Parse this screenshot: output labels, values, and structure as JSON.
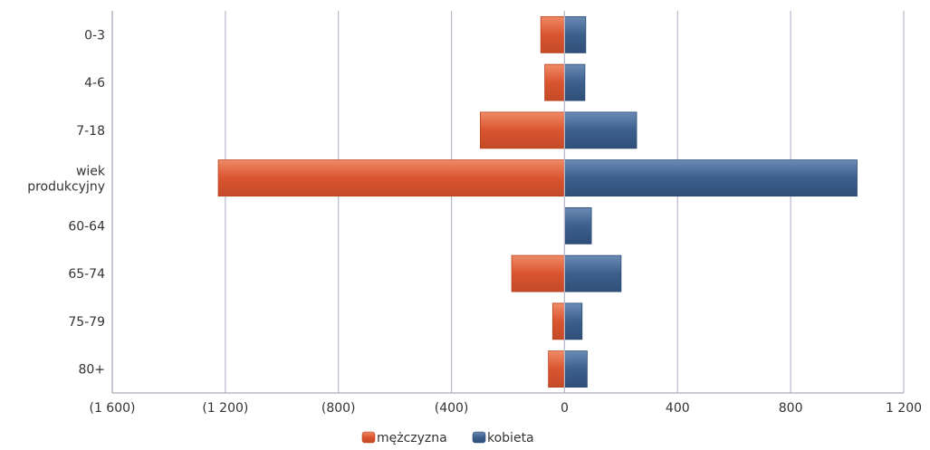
{
  "chart_data": {
    "type": "bar",
    "orientation": "horizontal",
    "layout": "population-pyramid",
    "categories": [
      "0-3",
      "4-6",
      "7-18",
      "wiek produkcyjny",
      "60-64",
      "65-74",
      "75-79",
      "80+"
    ],
    "series": [
      {
        "name": "mężczyzna",
        "color": "#d9552f",
        "values": [
          -84,
          -70,
          -298,
          -1225,
          0,
          -187,
          -42,
          -57
        ]
      },
      {
        "name": "kobieta",
        "color": "#3c5f8c",
        "values": [
          75,
          72,
          255,
          1035,
          95,
          200,
          62,
          80
        ]
      }
    ],
    "xlim": [
      -1600,
      1200
    ],
    "xticks": [
      -1600,
      -1200,
      -800,
      -400,
      0,
      400,
      800,
      1200
    ],
    "xtick_labels": [
      "(1 600)",
      "(1 200)",
      "(800)",
      "(400)",
      "0",
      "400",
      "800",
      "1 200"
    ],
    "grid": "vertical",
    "legend_position": "bottom"
  }
}
